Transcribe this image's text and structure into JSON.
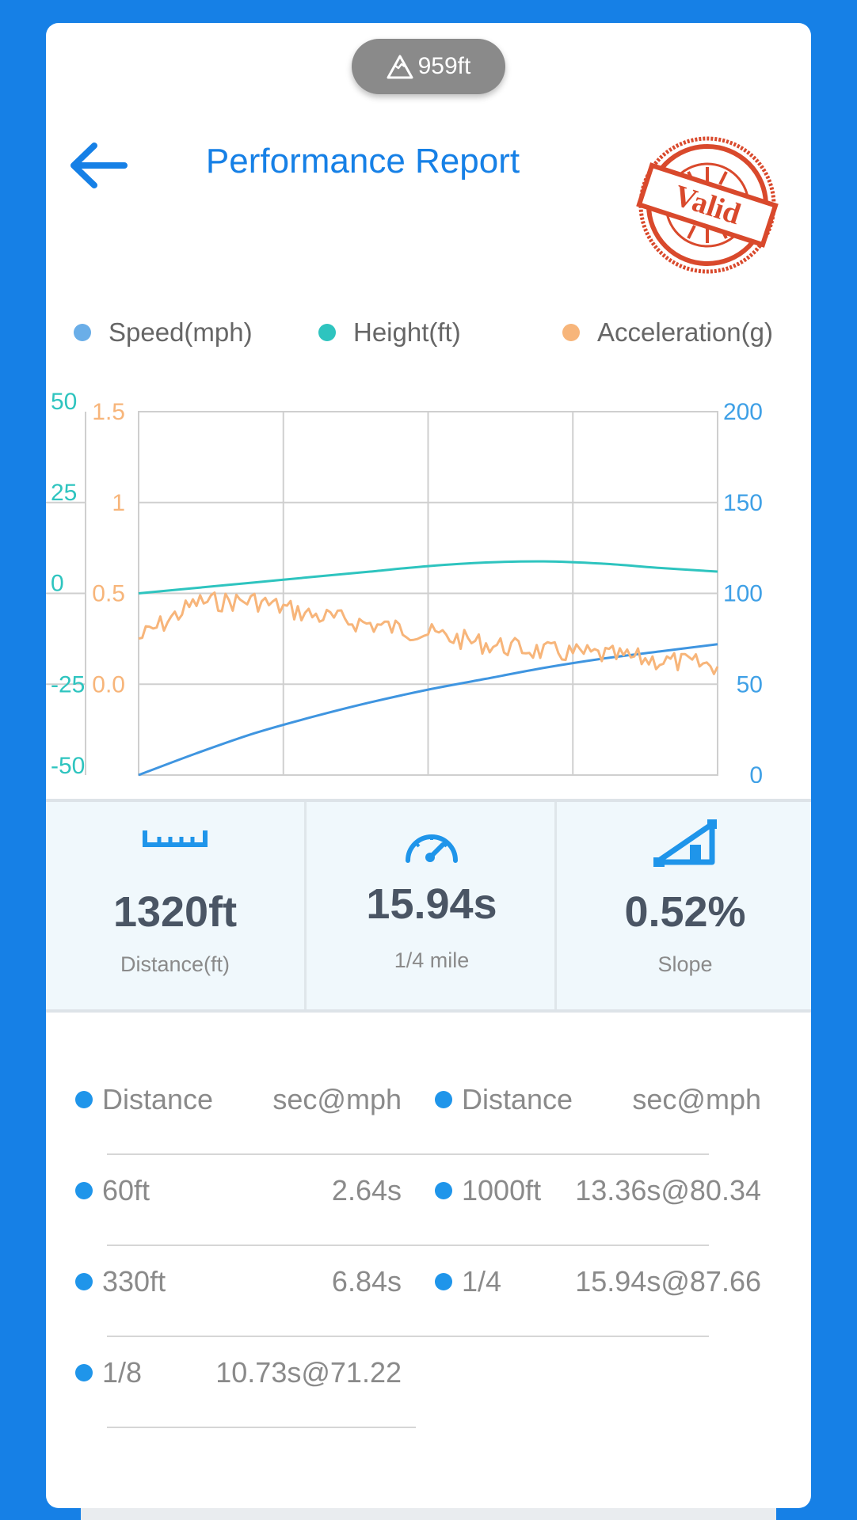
{
  "header": {
    "altitude": "959ft",
    "title": "Performance Report",
    "stamp_text": "Valid"
  },
  "legend": [
    {
      "label": "Speed(mph)",
      "color": "#6aaee8"
    },
    {
      "label": "Height(ft)",
      "color": "#2ec4bf"
    },
    {
      "label": "Acceleration(g)",
      "color": "#f7b57a"
    }
  ],
  "chart_data": {
    "type": "line",
    "height_axis": {
      "ticks": [
        "50",
        "25",
        "0",
        "-25",
        "-50"
      ],
      "range": [
        -50,
        50
      ],
      "color": "#2ec4bf"
    },
    "accel_axis": {
      "ticks": [
        "1.5",
        "1",
        "0.5",
        "0.0"
      ],
      "range": [
        -0.5,
        1.5
      ],
      "color": "#f7b57a"
    },
    "speed_axis": {
      "ticks": [
        "200",
        "150",
        "100",
        "50",
        "0"
      ],
      "range": [
        0,
        200
      ],
      "color": "#3fa0e6"
    },
    "x": [
      0,
      0.1,
      0.2,
      0.3,
      0.4,
      0.5,
      0.6,
      0.7,
      0.8,
      0.9,
      1.0
    ],
    "series": [
      {
        "name": "Speed(mph)",
        "axis": "speed",
        "color": "#3f95e0",
        "values": [
          0,
          12,
          23,
          32,
          40,
          47,
          53,
          59,
          64,
          68,
          72
        ]
      },
      {
        "name": "Height(ft)",
        "axis": "height",
        "color": "#2ec4bf",
        "values": [
          0,
          1.5,
          3,
          4.5,
          6,
          7.5,
          8.5,
          8.8,
          8.2,
          7.0,
          6.0
        ]
      },
      {
        "name": "Acceleration(g)",
        "axis": "accel",
        "color": "#f7b57a",
        "values": [
          0.25,
          0.45,
          0.46,
          0.38,
          0.33,
          0.28,
          0.22,
          0.18,
          0.16,
          0.13,
          0.1
        ]
      }
    ],
    "grid": true
  },
  "stats": [
    {
      "value": "1320ft",
      "label": "Distance(ft)",
      "icon": "ruler-icon"
    },
    {
      "value": "15.94s",
      "label": "1/4 mile",
      "icon": "speedometer-icon"
    },
    {
      "value": "0.52%",
      "label": "Slope",
      "icon": "slope-icon"
    }
  ],
  "splits": {
    "header": {
      "name": "Distance",
      "value": "sec@mph"
    },
    "left": [
      {
        "name": "60ft",
        "value": "2.64s"
      },
      {
        "name": "330ft",
        "value": "6.84s"
      },
      {
        "name": "1/8",
        "value": "10.73s@71.22"
      }
    ],
    "right": [
      {
        "name": "1000ft",
        "value": "13.36s@80.34"
      },
      {
        "name": "1/4",
        "value": "15.94s@87.66"
      }
    ]
  }
}
